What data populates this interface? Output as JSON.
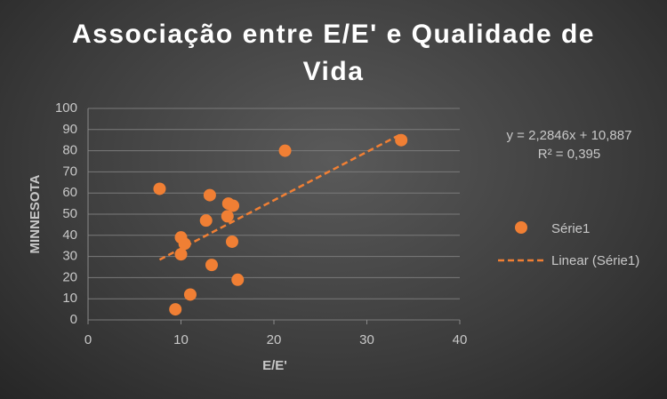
{
  "chart_data": {
    "type": "scatter",
    "title": "Associação entre E/E' e Qualidade de Vida",
    "x_label": "E/E'",
    "y_label": "MINNESOTA",
    "series": [
      {
        "name": "Série1",
        "color": "#f07f34",
        "x": [
          7.7,
          9.4,
          10.0,
          10.0,
          10.4,
          11.0,
          12.7,
          13.1,
          13.3,
          15.0,
          15.1,
          15.6,
          15.5,
          16.1,
          21.2,
          33.7
        ],
        "values": [
          62,
          5,
          31,
          39,
          36,
          12,
          47,
          59,
          26,
          49,
          55,
          54,
          37,
          19,
          80,
          85
        ]
      }
    ],
    "trendline": {
      "name": "Linear (Série1)",
      "slope": 2.2846,
      "intercept": 10.887,
      "equation": "y = 2,2846x + 10,887",
      "r2_label": "R² = 0,395"
    },
    "xlim": [
      0,
      40
    ],
    "xticks": [
      0,
      10,
      20,
      30,
      40
    ],
    "ylim": [
      0,
      100
    ],
    "yticks": [
      0,
      10,
      20,
      30,
      40,
      50,
      60,
      70,
      80,
      90,
      100
    ],
    "grid": true
  }
}
